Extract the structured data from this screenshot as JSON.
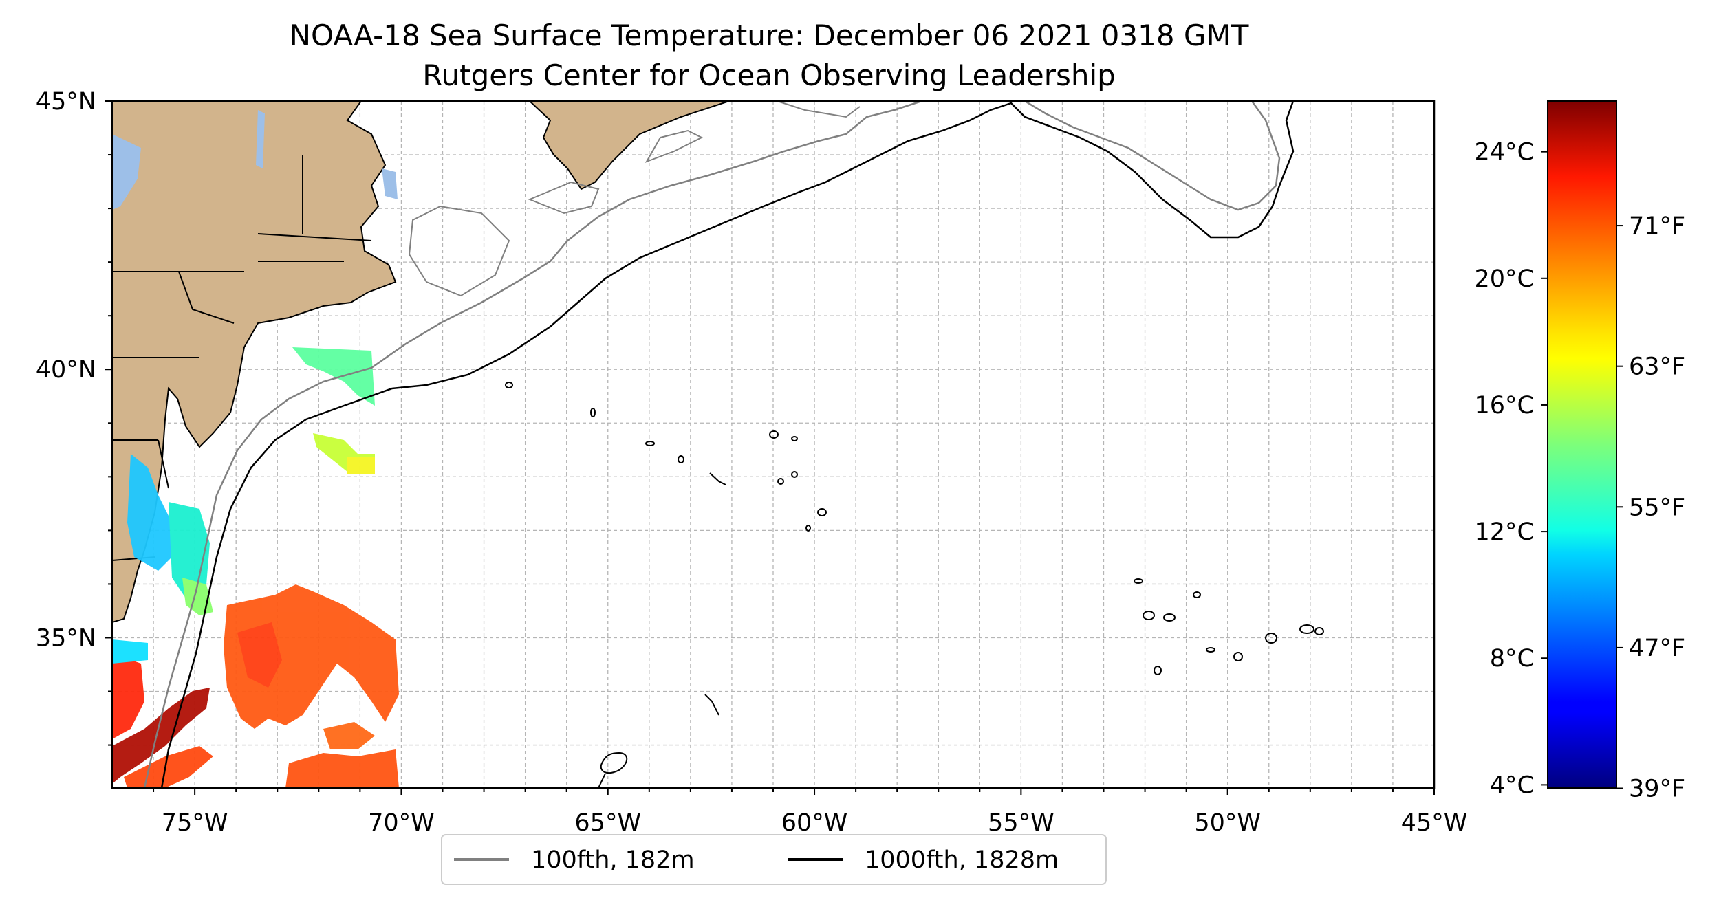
{
  "title": {
    "line1": "NOAA-18 Sea Surface Temperature: December 06 2021 0318 GMT",
    "line2": "Rutgers Center for Ocean Observing Leadership"
  },
  "map": {
    "lon_range": [
      -77,
      -45
    ],
    "lat_range": [
      32.2,
      45
    ],
    "grid": "on, dashed",
    "lon_ticks": [
      "75°W",
      "70°W",
      "65°W",
      "60°W",
      "55°W",
      "50°W",
      "45°W"
    ],
    "lat_ticks": [
      "45°N",
      "40°N",
      "35°N"
    ],
    "land_color": "#d2b48c",
    "lake_color": "#9dbfe8"
  },
  "colorbar": {
    "colormap": "jet",
    "celsius_ticks": [
      "24°C",
      "20°C",
      "16°C",
      "12°C",
      "8°C",
      "4°C"
    ],
    "fahrenheit_ticks": [
      "71°F",
      "63°F",
      "55°F",
      "47°F",
      "39°F"
    ],
    "range_celsius": [
      3.9,
      25.6
    ]
  },
  "legend": {
    "items": [
      {
        "label": "100fth, 182m",
        "color": "#808080"
      },
      {
        "label": "1000fth, 1828m",
        "color": "#000000"
      }
    ]
  }
}
